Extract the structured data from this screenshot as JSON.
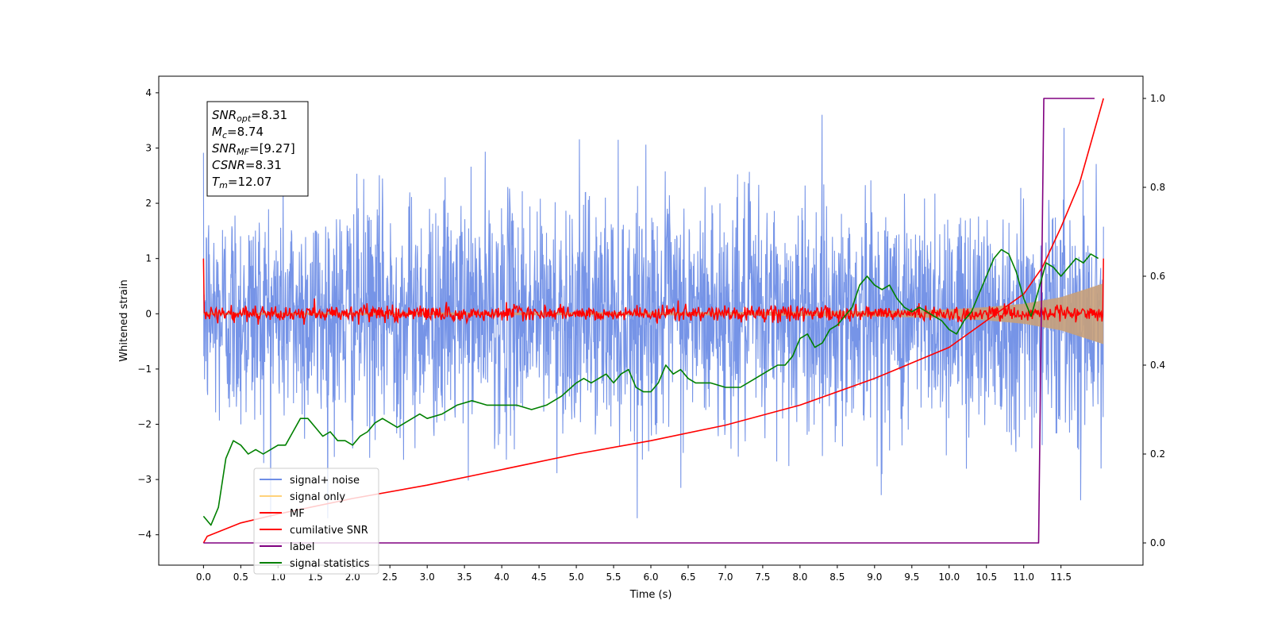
{
  "chart_data": {
    "type": "line",
    "xlabel": "Time (s)",
    "ylabel": "Whitened strain",
    "xlim": [
      -0.6,
      12.6
    ],
    "ylim": [
      -4.55,
      4.3
    ],
    "y2lim": [
      -0.05,
      1.05
    ],
    "x_ticks": [
      "0.0",
      "0.5",
      "1.0",
      "1.5",
      "2.0",
      "2.5",
      "3.0",
      "3.5",
      "4.0",
      "4.5",
      "5.0",
      "5.5",
      "6.0",
      "6.5",
      "7.0",
      "7.5",
      "8.0",
      "8.5",
      "9.0",
      "9.5",
      "10.0",
      "10.5",
      "11.0",
      "11.5"
    ],
    "y_ticks": [
      "−4",
      "−3",
      "−2",
      "−1",
      "0",
      "1",
      "2",
      "3",
      "4"
    ],
    "y2_ticks": [
      "0.0",
      "0.2",
      "0.4",
      "0.6",
      "0.8",
      "1.0"
    ],
    "duration": 12.07,
    "annotation": {
      "lines": [
        {
          "base": "SNR",
          "sub": "opt",
          "value": "=8.31"
        },
        {
          "base": "M",
          "sub": "c",
          "value": "=8.74"
        },
        {
          "base": "SNR",
          "sub": "MF",
          "value": "=[9.27]"
        },
        {
          "base": "CSNR",
          "sub": "",
          "value": "=8.31"
        },
        {
          "base": "T",
          "sub": "m",
          "value": "=12.07"
        }
      ]
    },
    "legend": [
      {
        "label": "signal+ noise",
        "color": "#6f8ee6"
      },
      {
        "label": "signal only",
        "color": "#ffd27a"
      },
      {
        "label": "MF",
        "color": "#ff0000"
      },
      {
        "label": "cumilative SNR",
        "color": "#ff0000"
      },
      {
        "label": "label",
        "color": "#800080"
      },
      {
        "label": "signal statistics",
        "color": "#008000"
      }
    ],
    "series": [
      {
        "name": "signal+ noise",
        "axis": "left",
        "color": "#6f8ee6",
        "style": "noise",
        "amplitude_sigma": 1.05
      },
      {
        "name": "signal only",
        "axis": "left",
        "color": "#c8a07a",
        "style": "envelope",
        "envelope": {
          "x": [
            0,
            7,
            9,
            10,
            10.5,
            11,
            11.5,
            12.07
          ],
          "y": [
            0.02,
            0.03,
            0.05,
            0.08,
            0.12,
            0.18,
            0.3,
            0.55
          ]
        }
      },
      {
        "name": "MF",
        "axis": "left",
        "color": "#ff0000",
        "style": "mf",
        "start_value": 1.0,
        "end_value": 1.0,
        "noise_sigma": 0.07
      },
      {
        "name": "cumilative SNR",
        "axis": "right",
        "color": "#ff0000",
        "x": [
          0,
          0.05,
          0.5,
          1,
          2,
          3,
          4,
          5,
          6,
          7,
          8,
          9,
          10,
          10.5,
          11,
          11.25,
          11.5,
          11.75,
          12.07
        ],
        "y": [
          0.0,
          0.015,
          0.045,
          0.065,
          0.1,
          0.13,
          0.165,
          0.2,
          0.23,
          0.265,
          0.31,
          0.37,
          0.44,
          0.5,
          0.56,
          0.62,
          0.71,
          0.81,
          1.0
        ]
      },
      {
        "name": "label",
        "axis": "right",
        "color": "#800080",
        "x": [
          0,
          11.2,
          11.27,
          11.95
        ],
        "y": [
          0.0,
          0.0,
          1.0,
          1.0
        ]
      },
      {
        "name": "signal statistics",
        "axis": "right",
        "color": "#008000",
        "x": [
          0,
          0.1,
          0.2,
          0.3,
          0.4,
          0.5,
          0.6,
          0.7,
          0.8,
          0.9,
          1.0,
          1.1,
          1.2,
          1.3,
          1.4,
          1.5,
          1.6,
          1.7,
          1.8,
          1.9,
          2.0,
          2.1,
          2.2,
          2.3,
          2.4,
          2.5,
          2.6,
          2.7,
          2.8,
          2.9,
          3.0,
          3.2,
          3.4,
          3.6,
          3.8,
          4.0,
          4.2,
          4.4,
          4.6,
          4.8,
          5.0,
          5.1,
          5.2,
          5.3,
          5.4,
          5.5,
          5.6,
          5.7,
          5.8,
          5.9,
          6.0,
          6.1,
          6.2,
          6.3,
          6.4,
          6.5,
          6.6,
          6.8,
          7.0,
          7.2,
          7.4,
          7.5,
          7.6,
          7.7,
          7.8,
          7.9,
          8.0,
          8.1,
          8.2,
          8.3,
          8.4,
          8.5,
          8.6,
          8.7,
          8.8,
          8.9,
          9.0,
          9.1,
          9.2,
          9.3,
          9.4,
          9.5,
          9.6,
          9.7,
          9.8,
          9.9,
          10.0,
          10.1,
          10.2,
          10.3,
          10.4,
          10.5,
          10.6,
          10.7,
          10.8,
          10.9,
          11.0,
          11.1,
          11.2,
          11.3,
          11.4,
          11.5,
          11.6,
          11.7,
          11.8,
          11.9,
          12.0
        ],
        "y": [
          0.06,
          0.04,
          0.08,
          0.19,
          0.23,
          0.22,
          0.2,
          0.21,
          0.2,
          0.21,
          0.22,
          0.22,
          0.25,
          0.28,
          0.28,
          0.26,
          0.24,
          0.25,
          0.23,
          0.23,
          0.22,
          0.24,
          0.25,
          0.27,
          0.28,
          0.27,
          0.26,
          0.27,
          0.28,
          0.29,
          0.28,
          0.29,
          0.31,
          0.32,
          0.31,
          0.31,
          0.31,
          0.3,
          0.31,
          0.33,
          0.36,
          0.37,
          0.36,
          0.37,
          0.38,
          0.36,
          0.38,
          0.39,
          0.35,
          0.34,
          0.34,
          0.36,
          0.4,
          0.38,
          0.39,
          0.37,
          0.36,
          0.36,
          0.35,
          0.35,
          0.37,
          0.38,
          0.39,
          0.4,
          0.4,
          0.42,
          0.46,
          0.47,
          0.44,
          0.45,
          0.48,
          0.49,
          0.51,
          0.53,
          0.58,
          0.6,
          0.58,
          0.57,
          0.58,
          0.55,
          0.53,
          0.52,
          0.53,
          0.52,
          0.51,
          0.5,
          0.48,
          0.47,
          0.5,
          0.52,
          0.56,
          0.6,
          0.64,
          0.66,
          0.65,
          0.61,
          0.55,
          0.51,
          0.57,
          0.63,
          0.62,
          0.6,
          0.62,
          0.64,
          0.63,
          0.65,
          0.64
        ]
      }
    ]
  }
}
